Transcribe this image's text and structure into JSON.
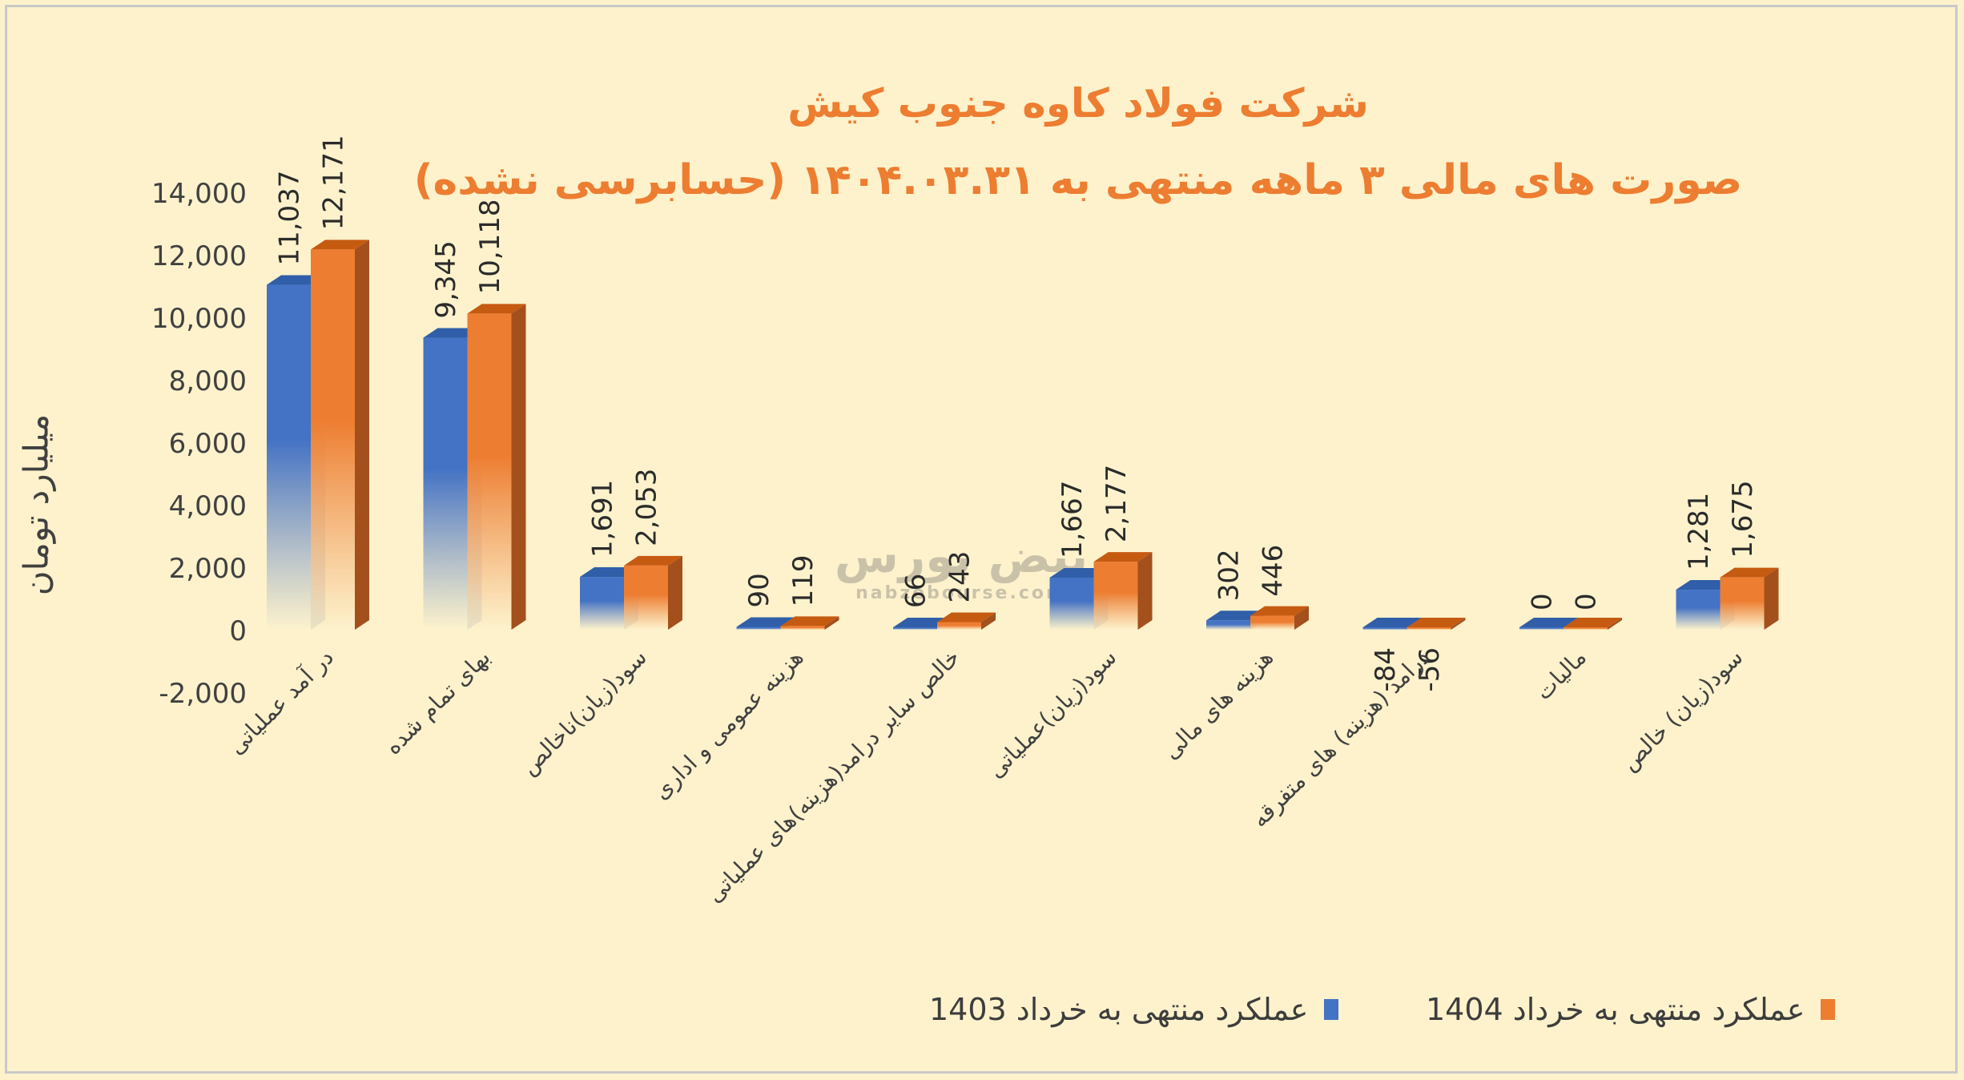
{
  "chart_data": {
    "type": "bar",
    "title": "شرکت فولاد کاوه جنوب کیش",
    "subtitle": "صورت های مالی ۳ ماهه منتهی به ۱۴۰۴.۰۳.۳۱ (حسابرسی نشده)",
    "ylabel": "میلیارد تومان",
    "xlabel": "",
    "ylim": [
      -2000,
      14000
    ],
    "yticks": [
      "14,000",
      "12,000",
      "10,000",
      "8,000",
      "6,000",
      "4,000",
      "2,000",
      "0",
      "-2,000"
    ],
    "ytick_values": [
      14000,
      12000,
      10000,
      8000,
      6000,
      4000,
      2000,
      0,
      -2000
    ],
    "grid": false,
    "legend_position": "bottom",
    "categories": [
      "در آمد عملیاتی",
      "بهای تمام شده",
      "سود(زیان)ناخالص",
      "هزینه عمومی و اداری",
      "خالص سایر درامد(هزینه)های عملیاتی",
      "سود(زیان)عملیاتی",
      "هزینه های مالی",
      "درامد (هزینه) های متفرقه",
      "مالیات",
      "سود(زیان) خالص"
    ],
    "series": [
      {
        "name": "عملکرد منتهی به خرداد 1403",
        "color": "#4472c4",
        "values": [
          11037,
          9345,
          1691,
          90,
          66,
          1667,
          302,
          -84,
          0,
          1281
        ],
        "labels": [
          "11,037",
          "9,345",
          "1,691",
          "90",
          "66",
          "1,667",
          "302",
          "-84",
          "0",
          "1,281"
        ]
      },
      {
        "name": "عملکرد منتهی به خرداد 1404",
        "color": "#ed7d31",
        "values": [
          12171,
          10118,
          2053,
          119,
          243,
          2177,
          446,
          -56,
          0,
          1675
        ],
        "labels": [
          "12,171",
          "10,118",
          "2,053",
          "119",
          "243",
          "2,177",
          "446",
          "-56",
          "0",
          "1,675"
        ]
      }
    ]
  },
  "legend": {
    "item1": "عملکرد منتهی به خرداد 1403",
    "item2": "عملکرد منتهی به خرداد 1404"
  },
  "watermark": {
    "name": "نبض بورس",
    "url": "nabzebourse.com"
  }
}
